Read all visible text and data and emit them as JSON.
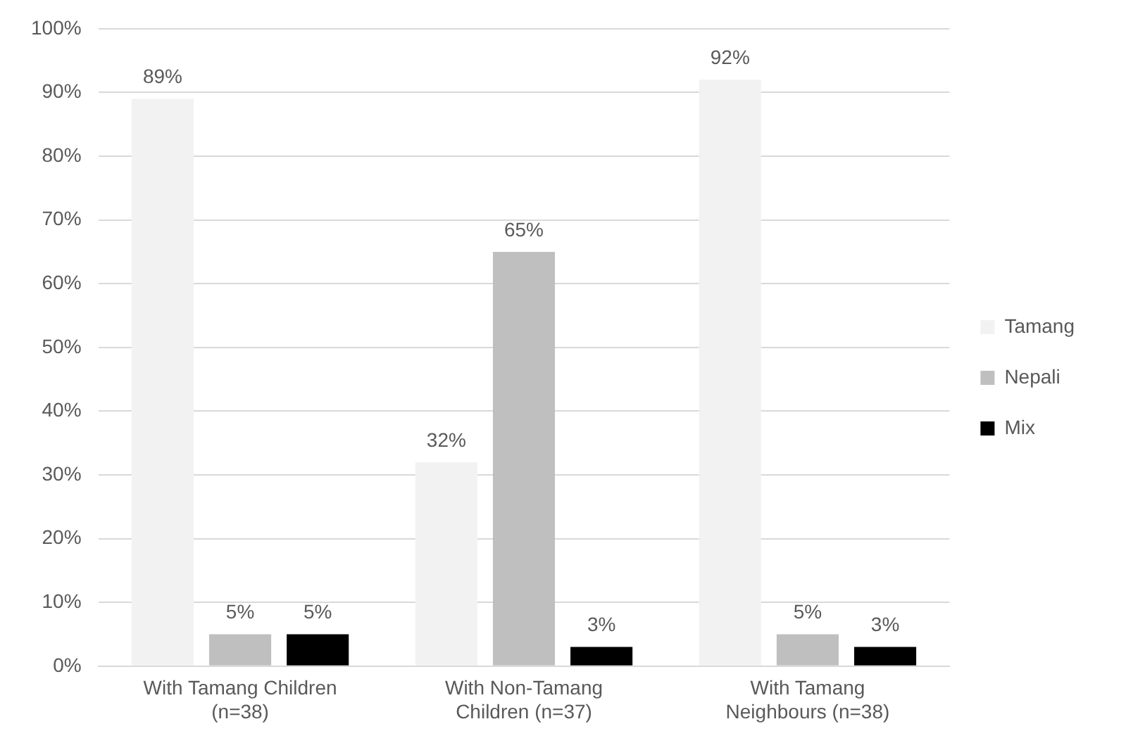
{
  "chart_data": {
    "type": "bar",
    "categories": [
      "With Tamang Children (n=38)",
      "With Non-Tamang Children (n=37)",
      "With Tamang Neighbours (n=38)"
    ],
    "series": [
      {
        "name": "Tamang",
        "color": "#f2f2f2",
        "values": [
          89,
          32,
          92
        ]
      },
      {
        "name": "Nepali",
        "color": "#bfbfbf",
        "values": [
          5,
          65,
          5
        ]
      },
      {
        "name": "Mix",
        "color": "#000000",
        "values": [
          5,
          3,
          3
        ]
      }
    ],
    "ylim": [
      0,
      100
    ],
    "yticks": [
      {
        "value": 0,
        "label": "0%"
      },
      {
        "value": 10,
        "label": "10%"
      },
      {
        "value": 20,
        "label": "20%"
      },
      {
        "value": 30,
        "label": "30%"
      },
      {
        "value": 40,
        "label": "40%"
      },
      {
        "value": 50,
        "label": "50%"
      },
      {
        "value": 60,
        "label": "60%"
      },
      {
        "value": 70,
        "label": "70%"
      },
      {
        "value": 80,
        "label": "80%"
      },
      {
        "value": 90,
        "label": "90%"
      },
      {
        "value": 100,
        "label": "100%"
      }
    ],
    "value_labels": [
      [
        "89%",
        "32%",
        "92%"
      ],
      [
        "5%",
        "65%",
        "5%"
      ],
      [
        "5%",
        "3%",
        "3%"
      ]
    ],
    "grid": "y",
    "legend": "right"
  }
}
